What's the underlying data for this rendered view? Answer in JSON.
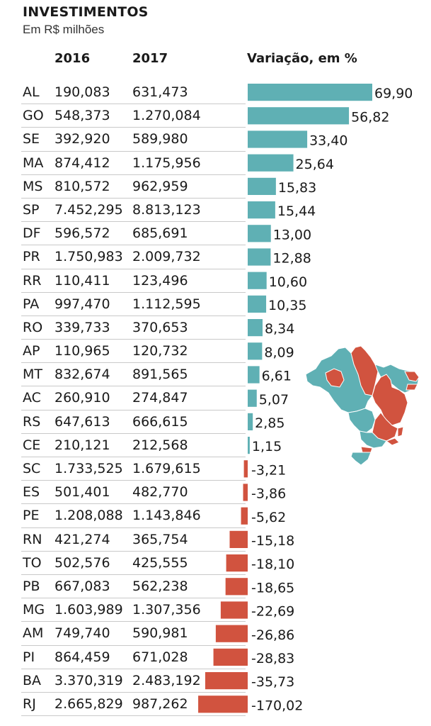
{
  "title": "INVESTIMENTOS",
  "subtitle": "Em R$ milhões",
  "columns": {
    "y2016": "2016",
    "y2017": "2017",
    "variation": "Variação, em %"
  },
  "colors": {
    "positive": "#5fb0b4",
    "negative": "#d1533f",
    "divider": "#c9c9c9"
  },
  "chart_data": {
    "type": "bar",
    "orientation": "horizontal",
    "categories": [
      "AL",
      "GO",
      "SE",
      "MA",
      "MS",
      "SP",
      "DF",
      "PR",
      "RR",
      "PA",
      "RO",
      "AP",
      "MT",
      "AC",
      "RS",
      "CE",
      "SC",
      "ES",
      "PE",
      "RN",
      "TO",
      "PB",
      "MG",
      "AM",
      "PI",
      "BA",
      "RJ"
    ],
    "series": [
      {
        "values": [
          69.9,
          56.82,
          33.4,
          25.64,
          15.83,
          15.44,
          13.0,
          12.88,
          10.6,
          10.35,
          8.34,
          8.09,
          6.61,
          5.07,
          2.85,
          1.15,
          -3.21,
          -3.86,
          -5.62,
          -15.18,
          -18.1,
          -18.65,
          -22.69,
          -26.86,
          -28.83,
          -35.73,
          -170.02
        ]
      }
    ],
    "value_labels": [
      "69,90",
      "56,82",
      "33,40",
      "25,64",
      "15,83",
      "15,44",
      "13,00",
      "12,88",
      "10,60",
      "10,35",
      "8,34",
      "8,09",
      "6,61",
      "5,07",
      "2,85",
      "1,15",
      "-3,21",
      "-3,86",
      "-5,62",
      "-15,18",
      "-18,10",
      "-18,65",
      "-22,69",
      "-26,86",
      "-28,83",
      "-35,73",
      "-170,02"
    ]
  },
  "table": {
    "rows": [
      {
        "uf": "AL",
        "v2016": "190,083",
        "v2017": "631,473"
      },
      {
        "uf": "GO",
        "v2016": "548,373",
        "v2017": "1.270,084"
      },
      {
        "uf": "SE",
        "v2016": "392,920",
        "v2017": "589,980"
      },
      {
        "uf": "MA",
        "v2016": "874,412",
        "v2017": "1.175,956"
      },
      {
        "uf": "MS",
        "v2016": "810,572",
        "v2017": "962,959"
      },
      {
        "uf": "SP",
        "v2016": "7.452,295",
        "v2017": "8.813,123"
      },
      {
        "uf": "DF",
        "v2016": "596,572",
        "v2017": "685,691"
      },
      {
        "uf": "PR",
        "v2016": "1.750,983",
        "v2017": "2.009,732"
      },
      {
        "uf": "RR",
        "v2016": "110,411",
        "v2017": "123,496"
      },
      {
        "uf": "PA",
        "v2016": "997,470",
        "v2017": "1.112,595"
      },
      {
        "uf": "RO",
        "v2016": "339,733",
        "v2017": "370,653"
      },
      {
        "uf": "AP",
        "v2016": "110,965",
        "v2017": "120,732"
      },
      {
        "uf": "MT",
        "v2016": "832,674",
        "v2017": "891,565"
      },
      {
        "uf": "AC",
        "v2016": "260,910",
        "v2017": "274,847"
      },
      {
        "uf": "RS",
        "v2016": "647,613",
        "v2017": "666,615"
      },
      {
        "uf": "CE",
        "v2016": "210,121",
        "v2017": "212,568"
      },
      {
        "uf": "SC",
        "v2016": "1.733,525",
        "v2017": "1.679,615"
      },
      {
        "uf": "ES",
        "v2016": "501,401",
        "v2017": "482,770"
      },
      {
        "uf": "PE",
        "v2016": "1.208,088",
        "v2017": "1.143,846"
      },
      {
        "uf": "RN",
        "v2016": "421,274",
        "v2017": "365,754"
      },
      {
        "uf": "TO",
        "v2016": "502,576",
        "v2017": "425,555"
      },
      {
        "uf": "PB",
        "v2016": "667,083",
        "v2017": "562,238"
      },
      {
        "uf": "MG",
        "v2016": "1.603,989",
        "v2017": "1.307,356"
      },
      {
        "uf": "AM",
        "v2016": "749,740",
        "v2017": "590,981"
      },
      {
        "uf": "PI",
        "v2016": "864,459",
        "v2017": "671,028"
      },
      {
        "uf": "BA",
        "v2016": "3.370,319",
        "v2017": "2.483,192"
      },
      {
        "uf": "RJ",
        "v2016": "2.665,829",
        "v2017": "987,262"
      }
    ]
  }
}
